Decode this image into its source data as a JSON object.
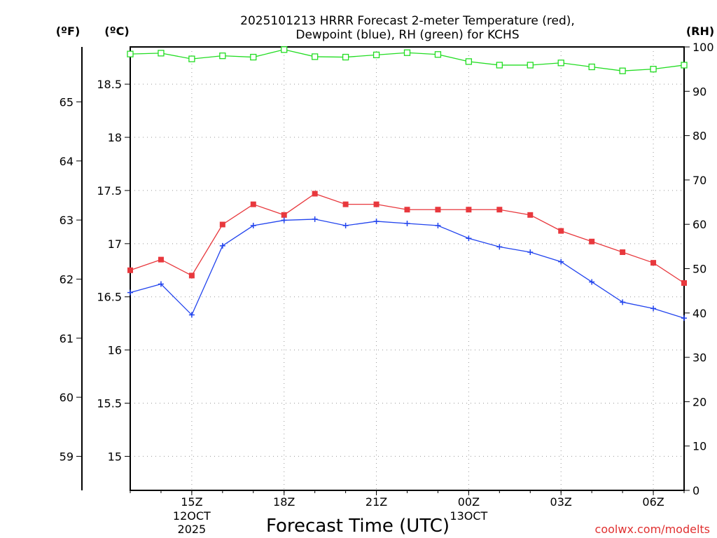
{
  "chart_data": {
    "type": "line",
    "title_line1": "2025101213 HRRR Forecast 2-meter Temperature (red),",
    "title_line2": "Dewpoint (blue), RH (green) for KCHS",
    "xlabel": "Forecast Time (UTC)",
    "credit": "coolwx.com/modelts",
    "unit_f": "(ºF)",
    "unit_c": "(ºC)",
    "unit_rh": "(RH)",
    "x_hours": [
      13,
      14,
      15,
      16,
      17,
      18,
      19,
      20,
      21,
      22,
      23,
      24,
      25,
      26,
      27,
      28,
      29,
      30,
      31
    ],
    "x_range": [
      13,
      31
    ],
    "celsius_range": [
      14.68,
      18.85
    ],
    "rh_range": [
      0,
      100
    ],
    "fahrenheit_ticks": [
      "59",
      "60",
      "61",
      "62",
      "63",
      "64",
      "65"
    ],
    "celsius_ticks": [
      "15",
      "15.5",
      "16",
      "16.5",
      "17",
      "17.5",
      "18",
      "18.5"
    ],
    "rh_ticks": [
      "0",
      "10",
      "20",
      "30",
      "40",
      "50",
      "60",
      "70",
      "80",
      "90",
      "100"
    ],
    "x_ticks": [
      {
        "hour": 15,
        "label": "15Z",
        "date": "12OCT",
        "year": "2025"
      },
      {
        "hour": 18,
        "label": "18Z"
      },
      {
        "hour": 21,
        "label": "21Z"
      },
      {
        "hour": 24,
        "label": "00Z",
        "date": "13OCT"
      },
      {
        "hour": 27,
        "label": "03Z"
      },
      {
        "hour": 30,
        "label": "06Z"
      }
    ],
    "series": [
      {
        "name": "Temperature (ºC)",
        "color": "#e8383d",
        "marker": "filled-square",
        "values": [
          16.75,
          16.85,
          16.7,
          17.18,
          17.37,
          17.27,
          17.47,
          17.37,
          17.37,
          17.32,
          17.32,
          17.32,
          17.32,
          17.27,
          17.12,
          17.02,
          16.92,
          16.82,
          16.63
        ]
      },
      {
        "name": "Dewpoint (ºC)",
        "color": "#2244ee",
        "marker": "plus",
        "values": [
          16.54,
          16.62,
          16.33,
          16.98,
          17.17,
          17.22,
          17.23,
          17.17,
          17.21,
          17.19,
          17.17,
          17.05,
          16.97,
          16.92,
          16.83,
          16.64,
          16.45,
          16.39,
          16.3
        ]
      },
      {
        "name": "RH (%)",
        "color": "#22dd22",
        "marker": "open-square",
        "values": [
          98.4,
          98.6,
          97.3,
          98.0,
          97.7,
          99.4,
          97.8,
          97.7,
          98.2,
          98.7,
          98.3,
          96.7,
          95.9,
          95.9,
          96.4,
          95.5,
          94.6,
          95.0,
          95.9
        ]
      }
    ]
  }
}
